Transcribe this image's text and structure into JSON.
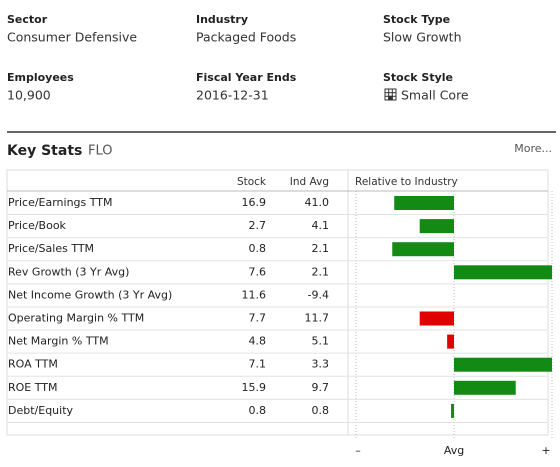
{
  "fields": [
    {
      "label": "Sector",
      "value": "Consumer Defensive"
    },
    {
      "label": "Industry",
      "value": "Packaged Foods"
    },
    {
      "label": "Stock Type",
      "value": "Slow Growth"
    },
    {
      "label": "Employees",
      "value": "10,900"
    },
    {
      "label": "Fiscal Year Ends",
      "value": "2016-12-31"
    },
    {
      "label": "Stock Style",
      "value": "Small Core"
    }
  ],
  "key_stats": {
    "title": "Key Stats",
    "ticker": "FLO",
    "more": "More...",
    "columns": [
      "Stock",
      "Ind Avg",
      "Relative to Industry"
    ],
    "rows": [
      {
        "name": "Price/Earnings TTM",
        "stock": "16.9",
        "ind_avg": "41.0",
        "relative": -0.61,
        "color": "#138a13"
      },
      {
        "name": "Price/Book",
        "stock": "2.7",
        "ind_avg": "4.1",
        "relative": -0.35,
        "color": "#138a13"
      },
      {
        "name": "Price/Sales TTM",
        "stock": "0.8",
        "ind_avg": "2.1",
        "relative": -0.63,
        "color": "#138a13"
      },
      {
        "name": "Rev Growth (3 Yr Avg)",
        "stock": "7.6",
        "ind_avg": "2.1",
        "relative": 1.0,
        "color": "#138a13"
      },
      {
        "name": "Net Income Growth (3 Yr Avg)",
        "stock": "11.6",
        "ind_avg": "-9.4",
        "relative": null,
        "color": "#138a13"
      },
      {
        "name": "Operating Margin % TTM",
        "stock": "7.7",
        "ind_avg": "11.7",
        "relative": -0.35,
        "color": "#e00000"
      },
      {
        "name": "Net Margin % TTM",
        "stock": "4.8",
        "ind_avg": "5.1",
        "relative": -0.07,
        "color": "#e00000"
      },
      {
        "name": "ROA TTM",
        "stock": "7.1",
        "ind_avg": "3.3",
        "relative": 1.0,
        "color": "#138a13"
      },
      {
        "name": "ROE TTM",
        "stock": "15.9",
        "ind_avg": "9.7",
        "relative": 0.63,
        "color": "#138a13"
      },
      {
        "name": "Debt/Equity",
        "stock": "0.8",
        "ind_avg": "0.8",
        "relative": -0.03,
        "color": "#138a13"
      }
    ],
    "relative_axis": {
      "xlim": [
        -1,
        1
      ],
      "xticks": [
        {
          "value": -1,
          "label": "–"
        },
        {
          "value": 0,
          "label": "Avg"
        },
        {
          "value": 1,
          "label": "+"
        }
      ]
    }
  }
}
